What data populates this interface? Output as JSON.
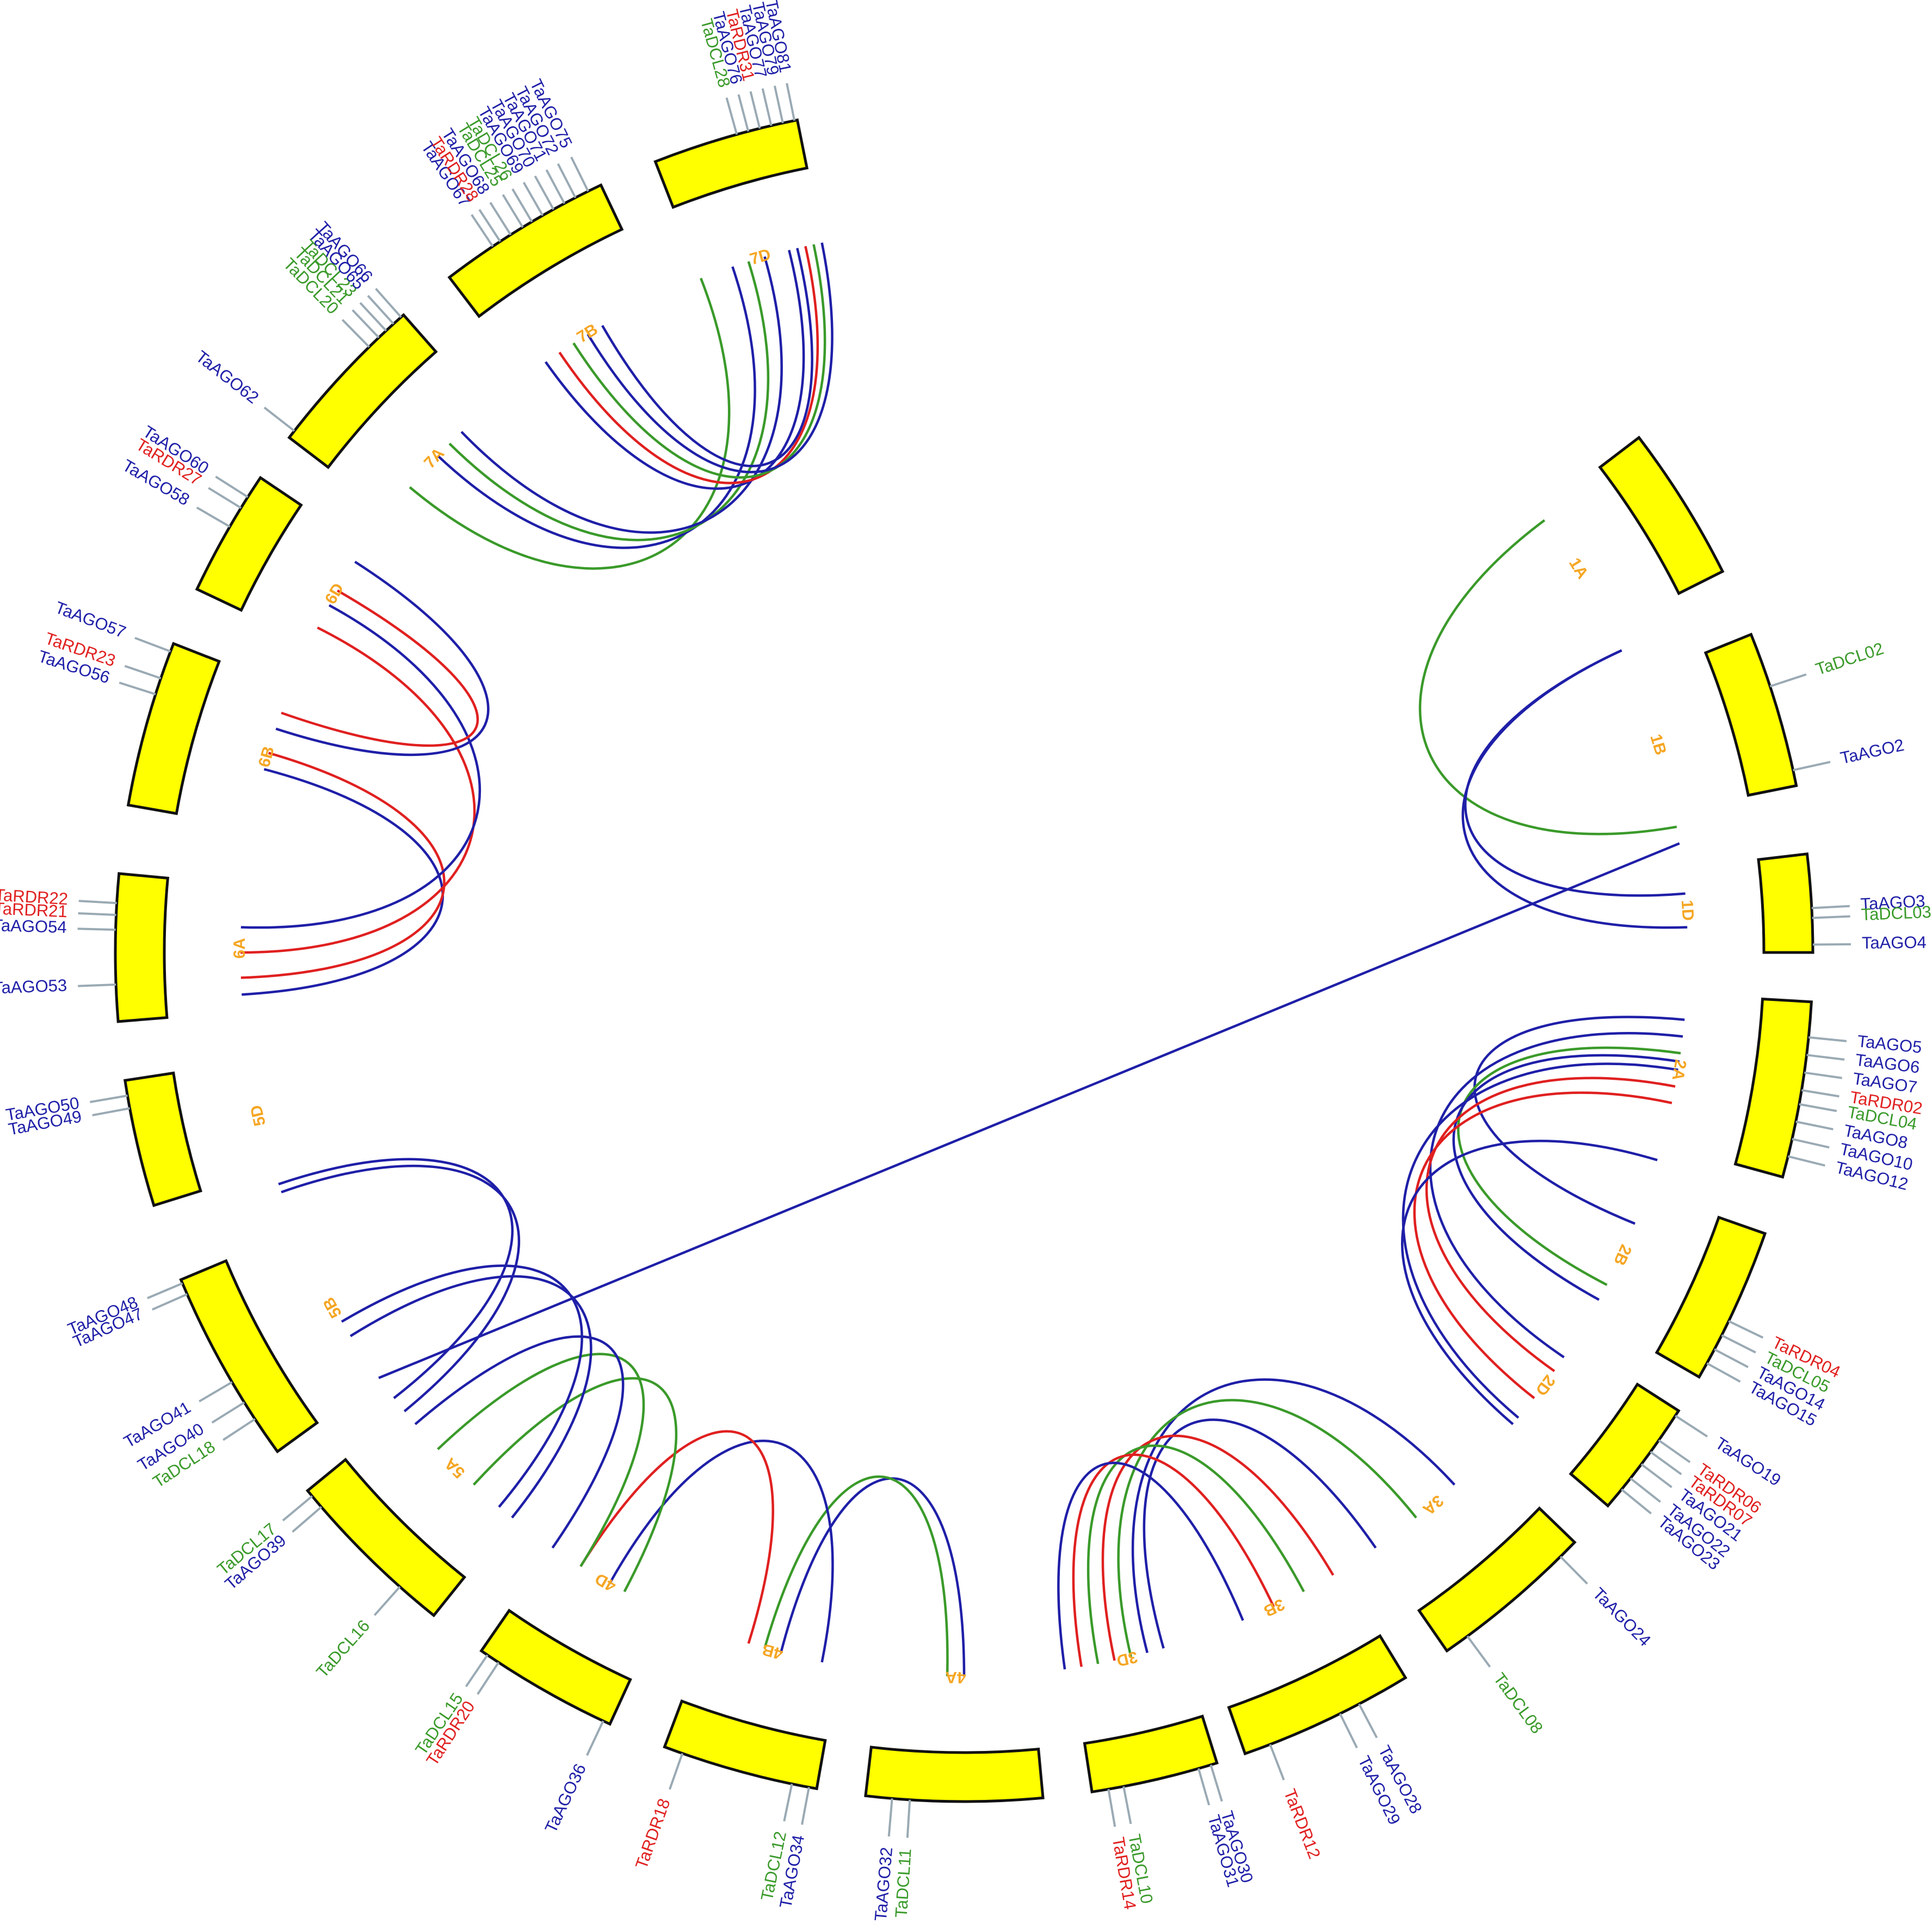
{
  "colors": {
    "AGO": "#1f1fa8",
    "DCL": "#3a9a2a",
    "RDR": "#e02020",
    "chromosome": "#ffff00",
    "chrom_label": "#f5a623"
  },
  "chromosomes": [
    {
      "name": "1A",
      "start": 79,
      "end": 95,
      "genes": []
    },
    {
      "name": "1B",
      "start": 102,
      "end": 118,
      "genes": [
        {
          "label": "TaDCL02",
          "fam": "DCL",
          "pos": 0.35
        },
        {
          "label": "TaAGO2",
          "fam": "AGO",
          "pos": 0.9
        }
      ]
    },
    {
      "name": "1D",
      "start": 125,
      "end": 135,
      "genes": [
        {
          "label": "TaAGO3",
          "fam": "AGO",
          "pos": 0.55
        },
        {
          "label": "TaDCL03",
          "fam": "DCL",
          "pos": 0.65
        },
        {
          "label": "TaAGO4",
          "fam": "AGO",
          "pos": 0.92
        }
      ]
    },
    {
      "name": "2A",
      "start": 140,
      "end": 158,
      "genes": [
        {
          "label": "TaAGO5",
          "fam": "AGO",
          "pos": 0.2
        },
        {
          "label": "TaAGO6",
          "fam": "AGO",
          "pos": 0.3
        },
        {
          "label": "TaAGO7",
          "fam": "AGO",
          "pos": 0.4
        },
        {
          "label": "TaRDR02",
          "fam": "RDR",
          "pos": 0.5
        },
        {
          "label": "TaDCL04",
          "fam": "DCL",
          "pos": 0.58
        },
        {
          "label": "TaAGO8",
          "fam": "AGO",
          "pos": 0.68
        },
        {
          "label": "TaAGO10",
          "fam": "AGO",
          "pos": 0.78
        },
        {
          "label": "TaAGO12",
          "fam": "AGO",
          "pos": 0.88
        }
      ]
    },
    {
      "name": "2B",
      "start": 164,
      "end": 180,
      "genes": [
        {
          "label": "TaRDR04",
          "fam": "RDR",
          "pos": 0.6
        },
        {
          "label": "TaDCL05",
          "fam": "DCL",
          "pos": 0.7
        },
        {
          "label": "TaAGO14",
          "fam": "AGO",
          "pos": 0.8
        },
        {
          "label": "TaAGO15",
          "fam": "AGO",
          "pos": 0.9
        }
      ]
    },
    {
      "name": "2D",
      "start": 184,
      "end": 196,
      "genes": [
        {
          "label": "TaAGO19",
          "fam": "AGO",
          "pos": 0.05
        },
        {
          "label": "TaRDR06",
          "fam": "RDR",
          "pos": 0.3
        },
        {
          "label": "TaRDR07",
          "fam": "RDR",
          "pos": 0.42
        },
        {
          "label": "TaAGO21",
          "fam": "AGO",
          "pos": 0.55
        },
        {
          "label": "TaAGO22",
          "fam": "AGO",
          "pos": 0.7
        },
        {
          "label": "TaAGO23",
          "fam": "AGO",
          "pos": 0.82
        }
      ]
    },
    {
      "name": "3A",
      "start": 201,
      "end": 218,
      "genes": [
        {
          "label": "TaAGO24",
          "fam": "AGO",
          "pos": 0.12
        },
        {
          "label": "TaDCL08",
          "fam": "DCL",
          "pos": 0.85
        }
      ]
    },
    {
      "name": "3B",
      "start": 223,
      "end": 241,
      "genes": [
        {
          "label": "TaAGO28",
          "fam": "AGO",
          "pos": 0.3
        },
        {
          "label": "TaAGO29",
          "fam": "AGO",
          "pos": 0.42
        },
        {
          "label": "TaRDR12",
          "fam": "RDR",
          "pos": 0.85
        }
      ]
    },
    {
      "name": "3D",
      "start": 244,
      "end": 257,
      "genes": [
        {
          "label": "TaAGO30",
          "fam": "AGO",
          "pos": 0.05
        },
        {
          "label": "TaAGO31",
          "fam": "AGO",
          "pos": 0.15
        },
        {
          "label": "TaDCL10",
          "fam": "DCL",
          "pos": 0.75
        },
        {
          "label": "TaRDR14",
          "fam": "RDR",
          "pos": 0.87
        }
      ]
    },
    {
      "name": "4A",
      "start": 262,
      "end": 280,
      "genes": [
        {
          "label": "TaDCL11",
          "fam": "DCL",
          "pos": 0.75
        },
        {
          "label": "TaAGO32",
          "fam": "AGO",
          "pos": 0.85
        }
      ]
    },
    {
      "name": "4B",
      "start": 285,
      "end": 301,
      "genes": [
        {
          "label": "TaAGO34",
          "fam": "AGO",
          "pos": 0.05
        },
        {
          "label": "TaDCL12",
          "fam": "DCL",
          "pos": 0.16
        },
        {
          "label": "TaRDR18",
          "fam": "RDR",
          "pos": 0.88
        }
      ]
    },
    {
      "name": "4D",
      "start": 307,
      "end": 322,
      "genes": [
        {
          "label": "TaAGO36",
          "fam": "AGO",
          "pos": 0.05
        },
        {
          "label": "TaRDR20",
          "fam": "RDR",
          "pos": 0.86
        },
        {
          "label": "TaDCL15",
          "fam": "DCL",
          "pos": 0.95
        }
      ]
    },
    {
      "name": "5A",
      "start": 328,
      "end": 346,
      "genes": [
        {
          "label": "TaDCL16",
          "fam": "DCL",
          "pos": 0.25
        },
        {
          "label": "TaAGO39",
          "fam": "AGO",
          "pos": 0.88
        },
        {
          "label": "TaDCL17",
          "fam": "DCL",
          "pos": 0.96
        }
      ]
    },
    {
      "name": "5B",
      "start": 351,
      "end": 371,
      "genes": [
        {
          "label": "TaDCL18",
          "fam": "DCL",
          "pos": 0.2
        },
        {
          "label": "TaAGO40",
          "fam": "AGO",
          "pos": 0.3
        },
        {
          "label": "TaAGO41",
          "fam": "AGO",
          "pos": 0.42
        },
        {
          "label": "TaAGO47",
          "fam": "AGO",
          "pos": 0.92
        },
        {
          "label": "TaAGO48",
          "fam": "AGO",
          "pos": 0.98
        }
      ]
    },
    {
      "name": "5D",
      "start": 379,
      "end": 392,
      "genes": [
        {
          "label": "TaAGO49",
          "fam": "AGO",
          "pos": 0.78
        },
        {
          "label": "TaAGO50",
          "fam": "AGO",
          "pos": 0.88
        }
      ]
    },
    {
      "name": "6A",
      "start": 398,
      "end": 413,
      "genes": [
        {
          "label": "TaAGO53",
          "fam": "AGO",
          "pos": 0.25
        },
        {
          "label": "TaAGO54",
          "fam": "AGO",
          "pos": 0.62
        },
        {
          "label": "TaRDR21",
          "fam": "RDR",
          "pos": 0.72
        },
        {
          "label": "TaRDR22",
          "fam": "RDR",
          "pos": 0.8
        }
      ]
    },
    {
      "name": "6B",
      "start": 420,
      "end": 437,
      "genes": [
        {
          "label": "TaAGO56",
          "fam": "AGO",
          "pos": 0.68
        },
        {
          "label": "TaRDR23",
          "fam": "RDR",
          "pos": 0.78
        },
        {
          "label": "TaAGO57",
          "fam": "AGO",
          "pos": 0.95
        }
      ]
    },
    {
      "name": "6D",
      "start": 443,
      "end": 456,
      "genes": [
        {
          "label": "TaAGO58",
          "fam": "AGO",
          "pos": 0.55
        },
        {
          "label": "TaRDR27",
          "fam": "RDR",
          "pos": 0.72
        },
        {
          "label": "TaAGO60",
          "fam": "AGO",
          "pos": 0.82
        }
      ]
    },
    {
      "name": "7A",
      "start": 461,
      "end": 478,
      "genes": [
        {
          "label": "TaAGO62",
          "fam": "AGO",
          "pos": 0.05
        },
        {
          "label": "TaDCL20",
          "fam": "DCL",
          "pos": 0.72
        },
        {
          "label": "TaDCL21",
          "fam": "DCL",
          "pos": 0.8
        },
        {
          "label": "TaDCL23",
          "fam": "DCL",
          "pos": 0.86
        },
        {
          "label": "TaAGO65",
          "fam": "AGO",
          "pos": 0.92
        },
        {
          "label": "TaAGO66",
          "fam": "AGO",
          "pos": 0.98
        }
      ]
    },
    {
      "name": "7B",
      "start": 484,
      "end": 502,
      "genes": [
        {
          "label": "TaAGO67",
          "fam": "AGO",
          "pos": 0.3
        },
        {
          "label": "TaRDR28",
          "fam": "RDR",
          "pos": 0.35
        },
        {
          "label": "TaAGO68",
          "fam": "AGO",
          "pos": 0.42
        },
        {
          "label": "TaDCL25",
          "fam": "DCL",
          "pos": 0.5
        },
        {
          "label": "TaDCL26",
          "fam": "DCL",
          "pos": 0.56
        },
        {
          "label": "TaAGO69",
          "fam": "AGO",
          "pos": 0.63
        },
        {
          "label": "TaAGO70",
          "fam": "AGO",
          "pos": 0.7
        },
        {
          "label": "TaAGO71",
          "fam": "AGO",
          "pos": 0.77
        },
        {
          "label": "TaAGO72",
          "fam": "AGO",
          "pos": 0.84
        },
        {
          "label": "TaAGO75",
          "fam": "AGO",
          "pos": 0.92
        }
      ]
    },
    {
      "name": "7D",
      "start": 508,
      "end": 523,
      "genes": [
        {
          "label": "TaDCL28",
          "fam": "DCL",
          "pos": 0.58
        },
        {
          "label": "TaAGO76",
          "fam": "AGO",
          "pos": 0.66
        },
        {
          "label": "TaRDR31",
          "fam": "RDR",
          "pos": 0.74
        },
        {
          "label": "TaAGO77",
          "fam": "AGO",
          "pos": 0.82
        },
        {
          "label": "TaAGO79",
          "fam": "AGO",
          "pos": 0.9
        },
        {
          "label": "TaAGO81",
          "fam": "AGO",
          "pos": 0.98
        }
      ]
    }
  ],
  "links": [
    {
      "a": 120,
      "b": 80,
      "fam": "DCL"
    },
    {
      "a": 132,
      "b": 98,
      "fam": "AGO"
    },
    {
      "a": 128,
      "b": 98,
      "fam": "AGO"
    },
    {
      "a": 143,
      "b": 168,
      "fam": "AGO"
    },
    {
      "a": 145,
      "b": 186,
      "fam": "AGO"
    },
    {
      "a": 147,
      "b": 176,
      "fam": "DCL"
    },
    {
      "a": 148,
      "b": 178,
      "fam": "AGO"
    },
    {
      "a": 151,
      "b": 188,
      "fam": "RDR"
    },
    {
      "a": 153,
      "b": 192,
      "fam": "RDR"
    },
    {
      "a": 149,
      "b": 195,
      "fam": "AGO"
    },
    {
      "a": 160,
      "b": 196,
      "fam": "AGO"
    },
    {
      "a": 206,
      "b": 248,
      "fam": "AGO"
    },
    {
      "a": 212,
      "b": 250,
      "fam": "DCL"
    },
    {
      "a": 218,
      "b": 246,
      "fam": "AGO"
    },
    {
      "a": 224,
      "b": 252,
      "fam": "RDR"
    },
    {
      "a": 228,
      "b": 254,
      "fam": "DCL"
    },
    {
      "a": 232,
      "b": 256,
      "fam": "RDR"
    },
    {
      "a": 236,
      "b": 258,
      "fam": "AGO"
    },
    {
      "a": 270,
      "b": 292,
      "fam": "AGO"
    },
    {
      "a": 272,
      "b": 294,
      "fam": "DCL"
    },
    {
      "a": 287,
      "b": 314,
      "fam": "AGO"
    },
    {
      "a": 296,
      "b": 318,
      "fam": "RDR"
    },
    {
      "a": 312,
      "b": 334,
      "fam": "DCL"
    },
    {
      "a": 318,
      "b": 340,
      "fam": "DCL"
    },
    {
      "a": 322,
      "b": 344,
      "fam": "AGO"
    },
    {
      "a": 328,
      "b": 357,
      "fam": "AGO"
    },
    {
      "a": 330,
      "b": 359,
      "fam": "AGO"
    },
    {
      "a": 346,
      "b": 376,
      "fam": "AGO"
    },
    {
      "a": 348,
      "b": 377,
      "fam": "AGO"
    },
    {
      "a": 400,
      "b": 427,
      "fam": "AGO"
    },
    {
      "a": 402,
      "b": 429,
      "fam": "RDR"
    },
    {
      "a": 405,
      "b": 445,
      "fam": "RDR"
    },
    {
      "a": 408,
      "b": 448,
      "fam": "AGO"
    },
    {
      "a": 432,
      "b": 454,
      "fam": "AGO"
    },
    {
      "a": 434,
      "b": 450,
      "fam": "RDR"
    },
    {
      "a": 465,
      "b": 508,
      "fam": "DCL"
    },
    {
      "a": 470,
      "b": 512,
      "fam": "AGO"
    },
    {
      "a": 472,
      "b": 514,
      "fam": "DCL"
    },
    {
      "a": 474,
      "b": 516,
      "fam": "AGO"
    },
    {
      "a": 487,
      "b": 519,
      "fam": "AGO"
    },
    {
      "a": 489,
      "b": 521,
      "fam": "RDR"
    },
    {
      "a": 491,
      "b": 522,
      "fam": "DCL"
    },
    {
      "a": 493,
      "b": 523,
      "fam": "AGO"
    },
    {
      "a": 495,
      "b": 520,
      "fam": "AGO"
    },
    {
      "a": 351,
      "b": 122,
      "fam": "AGO"
    }
  ]
}
